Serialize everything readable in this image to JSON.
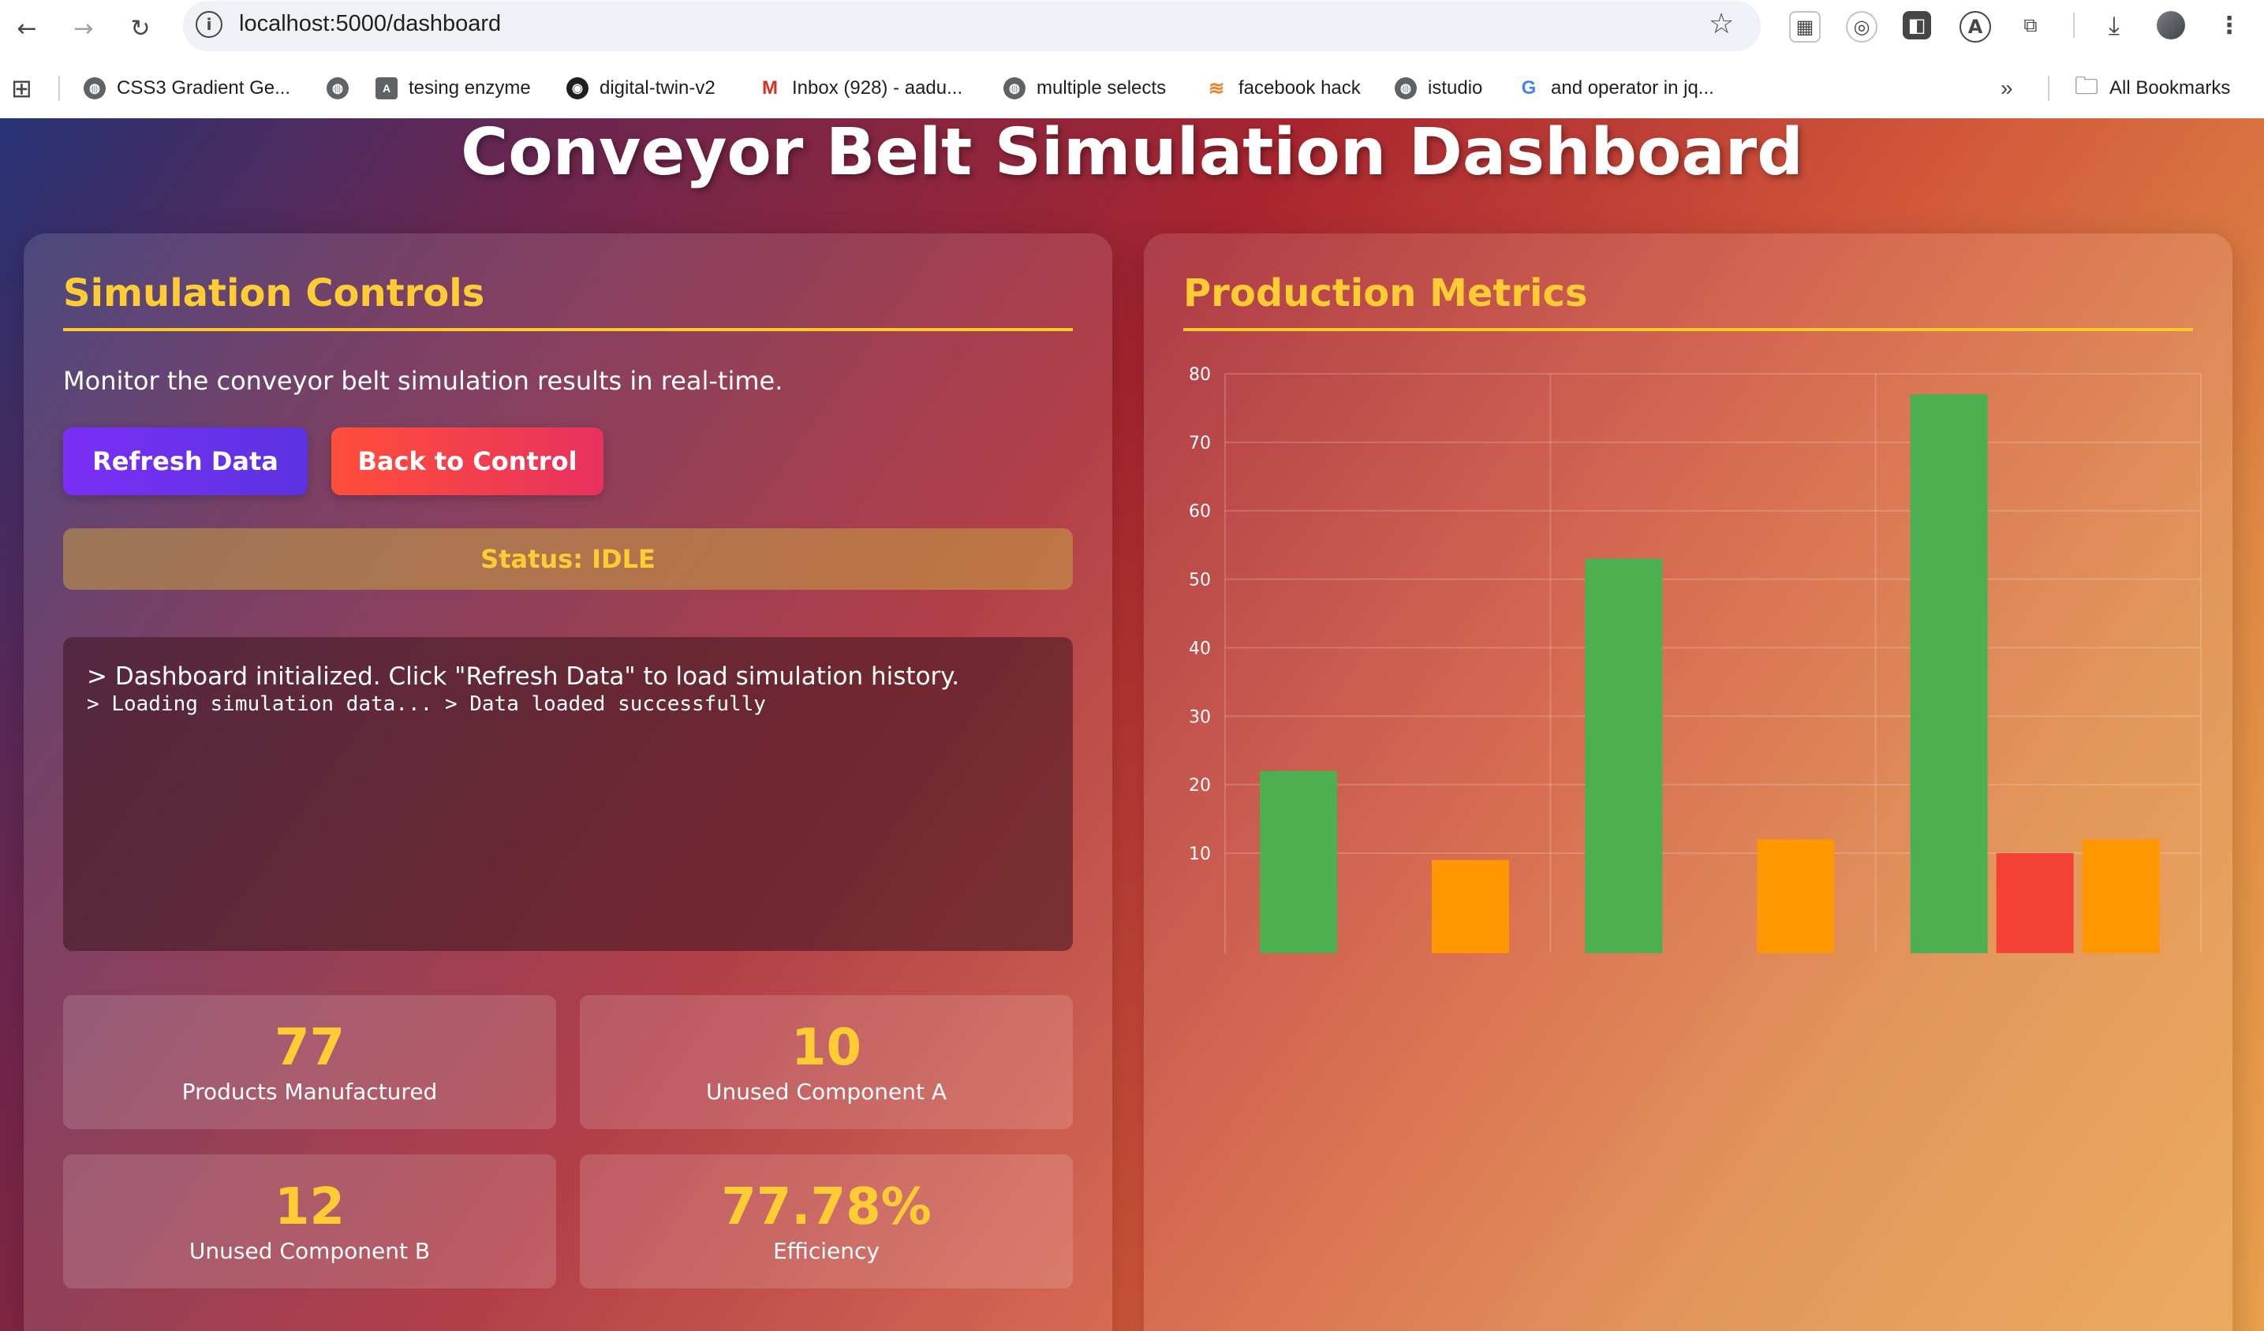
{
  "browser": {
    "url": "localhost:5000/dashboard",
    "bookmarks": [
      {
        "label": "CSS3 Gradient Ge...",
        "icon": "globe-icon"
      },
      {
        "label": "",
        "icon": "globe-icon"
      },
      {
        "label": "tesing enzyme",
        "icon": "a-box-icon"
      },
      {
        "label": "digital-twin-v2",
        "icon": "github-icon"
      },
      {
        "label": "Inbox (928) - aadu...",
        "icon": "gmail-icon"
      },
      {
        "label": "multiple selects",
        "icon": "globe-icon"
      },
      {
        "label": "facebook hack",
        "icon": "stack-icon"
      },
      {
        "label": "istudio",
        "icon": "globe-icon"
      },
      {
        "label": "and operator in jq...",
        "icon": "google-icon"
      }
    ],
    "overflow_label": "»",
    "all_bookmarks_label": "All Bookmarks"
  },
  "page": {
    "title": "Conveyor Belt Simulation Dashboard",
    "controls": {
      "heading": "Simulation Controls",
      "intro": "Monitor the conveyor belt simulation results in real-time.",
      "refresh_label": "Refresh Data",
      "back_label": "Back to Control",
      "status": "Status: IDLE",
      "console_line1": "> Dashboard initialized. Click \"Refresh Data\" to load simulation history.",
      "console_line2": "> Loading simulation data... > Data loaded successfully"
    },
    "stats": [
      {
        "value": "77",
        "label": "Products Manufactured"
      },
      {
        "value": "10",
        "label": "Unused Component A"
      },
      {
        "value": "12",
        "label": "Unused Component B"
      },
      {
        "value": "77.78%",
        "label": "Efficiency"
      }
    ],
    "metrics": {
      "heading": "Production Metrics"
    }
  },
  "colors": {
    "accent": "#ffcc33",
    "products": "#4caf50",
    "component_a": "#f44336",
    "component_b": "#ff9800"
  },
  "chart_data": {
    "type": "bar",
    "ylim": [
      0,
      80
    ],
    "yticks": [
      10,
      20,
      30,
      40,
      50,
      60,
      70,
      80
    ],
    "grid": true,
    "groups": [
      [
        {
          "series": "products",
          "value": 22
        },
        {
          "series": "component_a",
          "value": 0
        },
        {
          "series": "component_b",
          "value": 9
        }
      ],
      [
        {
          "series": "products",
          "value": 53
        },
        {
          "series": "component_a",
          "value": 0
        },
        {
          "series": "component_b",
          "value": 12
        }
      ],
      [
        {
          "series": "products",
          "value": 77
        },
        {
          "series": "component_a",
          "value": 10
        },
        {
          "series": "component_b",
          "value": 12
        }
      ]
    ]
  }
}
